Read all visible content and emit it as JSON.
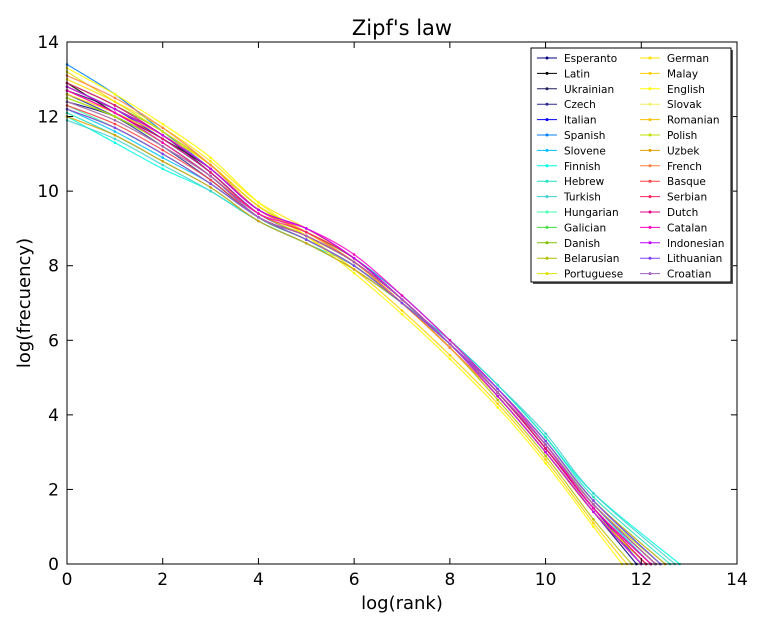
{
  "chart_data": {
    "type": "line",
    "title": "Zipf's law",
    "xlabel": "log(rank)",
    "ylabel": "log(frecuency)",
    "xlim": [
      0,
      14
    ],
    "ylim": [
      0,
      14
    ],
    "xticks": [
      0,
      2,
      4,
      6,
      8,
      10,
      12,
      14
    ],
    "yticks": [
      0,
      2,
      4,
      6,
      8,
      10,
      12,
      14
    ],
    "grid": false,
    "legend_position": "top-right",
    "legend_columns": 2,
    "series": [
      {
        "name": "Esperanto",
        "color": "#00007f",
        "x": [
          0,
          1,
          2,
          3,
          4,
          5,
          6,
          7,
          8,
          9,
          10,
          11,
          11.9
        ],
        "y": [
          12.4,
          12.0,
          11.3,
          10.4,
          9.3,
          8.7,
          8.0,
          7.0,
          5.8,
          4.5,
          3.0,
          1.4,
          0
        ]
      },
      {
        "name": "Latin",
        "color": "#000000",
        "x": [
          0,
          1,
          2,
          3,
          4,
          5,
          6,
          7,
          8,
          9,
          10,
          11,
          12.2
        ],
        "y": [
          12.9,
          12.1,
          11.4,
          10.6,
          9.5,
          8.9,
          8.2,
          7.1,
          5.9,
          4.6,
          3.1,
          1.5,
          0
        ]
      },
      {
        "name": "Ukrainian",
        "color": "#1f1f5f",
        "x": [
          0,
          1,
          2,
          3,
          4,
          5,
          6,
          7,
          8,
          9,
          10,
          11,
          12.3
        ],
        "y": [
          12.7,
          12.2,
          11.5,
          10.5,
          9.4,
          8.8,
          8.1,
          7.1,
          5.9,
          4.6,
          3.2,
          1.6,
          0
        ]
      },
      {
        "name": "Czech",
        "color": "#2a2a8f",
        "x": [
          0,
          1,
          2,
          3,
          4,
          5,
          6,
          7,
          8,
          9,
          10,
          11,
          12.1
        ],
        "y": [
          12.6,
          12.0,
          11.2,
          10.3,
          9.3,
          8.8,
          8.1,
          7.0,
          5.8,
          4.5,
          3.0,
          1.4,
          0
        ]
      },
      {
        "name": "Italian",
        "color": "#0000ff",
        "x": [
          0,
          1,
          2,
          3,
          4,
          5,
          6,
          7,
          8,
          9,
          10,
          11,
          12.0
        ],
        "y": [
          12.8,
          12.2,
          11.4,
          10.5,
          9.4,
          8.8,
          8.1,
          7.1,
          5.9,
          4.6,
          3.1,
          1.5,
          0
        ]
      },
      {
        "name": "Spanish",
        "color": "#0080ff",
        "x": [
          0,
          1,
          2,
          3,
          4,
          5,
          6,
          7,
          8,
          9,
          10,
          11,
          12.4
        ],
        "y": [
          13.4,
          12.6,
          11.6,
          10.6,
          9.5,
          8.9,
          8.2,
          7.2,
          6.0,
          4.7,
          3.3,
          1.7,
          0
        ]
      },
      {
        "name": "Slovene",
        "color": "#00c0ff",
        "x": [
          0,
          1,
          2,
          3,
          4,
          5,
          6,
          7,
          8,
          9,
          10,
          11,
          12.2
        ],
        "y": [
          12.2,
          11.6,
          10.9,
          10.2,
          9.3,
          8.7,
          8.0,
          7.0,
          5.9,
          4.6,
          3.2,
          1.6,
          0
        ]
      },
      {
        "name": "Finnish",
        "color": "#00ffe0",
        "x": [
          0,
          1,
          2,
          3,
          4,
          5,
          6,
          7,
          8,
          9,
          10,
          11,
          12.8
        ],
        "y": [
          12.0,
          11.3,
          10.6,
          10.0,
          9.2,
          8.6,
          7.9,
          7.0,
          6.0,
          4.8,
          3.4,
          1.9,
          0
        ]
      },
      {
        "name": "Hebrew",
        "color": "#20e0c0",
        "x": [
          0,
          1,
          2,
          3,
          4,
          5,
          6,
          7,
          8,
          9,
          10,
          11,
          12.6
        ],
        "y": [
          12.1,
          11.5,
          10.8,
          10.1,
          9.2,
          8.6,
          8.0,
          7.0,
          6.0,
          4.8,
          3.4,
          1.8,
          0
        ]
      },
      {
        "name": "Turkish",
        "color": "#40d0d0",
        "x": [
          0,
          1,
          2,
          3,
          4,
          5,
          6,
          7,
          8,
          9,
          10,
          11,
          12.7
        ],
        "y": [
          11.9,
          11.4,
          10.7,
          10.0,
          9.2,
          8.6,
          7.9,
          7.0,
          6.0,
          4.8,
          3.5,
          1.9,
          0
        ]
      },
      {
        "name": "Hungarian",
        "color": "#40ffb0",
        "x": [
          0,
          1,
          2,
          3,
          4,
          5,
          6,
          7,
          8,
          9,
          10,
          11,
          12.5
        ],
        "y": [
          12.3,
          11.7,
          11.0,
          10.2,
          9.3,
          8.7,
          8.0,
          7.0,
          5.9,
          4.7,
          3.3,
          1.7,
          0
        ]
      },
      {
        "name": "Galician",
        "color": "#40e040",
        "x": [
          0,
          1,
          2,
          3,
          4,
          5,
          6,
          7,
          8,
          9,
          10,
          11,
          12.0
        ],
        "y": [
          12.5,
          12.0,
          11.3,
          10.4,
          9.3,
          8.7,
          8.0,
          7.0,
          5.8,
          4.5,
          3.0,
          1.4,
          0
        ]
      },
      {
        "name": "Danish",
        "color": "#80c000",
        "x": [
          0,
          1,
          2,
          3,
          4,
          5,
          6,
          7,
          8,
          9,
          10,
          11,
          12.2
        ],
        "y": [
          12.9,
          12.3,
          11.6,
          10.7,
          9.6,
          8.9,
          8.2,
          7.1,
          5.9,
          4.6,
          3.1,
          1.5,
          0
        ]
      },
      {
        "name": "Belarusian",
        "color": "#b0c000",
        "x": [
          0,
          1,
          2,
          3,
          4,
          5,
          6,
          7,
          8,
          9,
          10,
          11,
          11.8
        ],
        "y": [
          12.2,
          11.7,
          11.0,
          10.2,
          9.3,
          8.7,
          8.0,
          7.0,
          5.8,
          4.4,
          2.9,
          1.2,
          0
        ]
      },
      {
        "name": "Portuguese",
        "color": "#e0e000",
        "x": [
          0,
          1,
          2,
          3,
          4,
          5,
          6,
          7,
          8,
          9,
          10,
          11,
          12.1
        ],
        "y": [
          13.2,
          12.4,
          11.6,
          10.7,
          9.6,
          8.9,
          8.1,
          7.0,
          5.8,
          4.5,
          3.0,
          1.4,
          0
        ]
      },
      {
        "name": "German",
        "color": "#ffe000",
        "x": [
          0,
          1,
          2,
          3,
          4,
          5,
          6,
          7,
          8,
          9,
          10,
          11,
          12.3
        ],
        "y": [
          13.0,
          12.4,
          11.7,
          10.8,
          9.7,
          9.0,
          8.2,
          7.1,
          5.9,
          4.6,
          3.2,
          1.6,
          0
        ]
      },
      {
        "name": "Malay",
        "color": "#ffd000",
        "x": [
          0,
          1,
          2,
          3,
          4,
          5,
          6,
          7,
          8,
          9,
          10,
          11,
          11.7
        ],
        "y": [
          12.6,
          12.1,
          11.5,
          10.7,
          9.6,
          8.8,
          7.9,
          6.8,
          5.6,
          4.3,
          2.8,
          1.1,
          0
        ]
      },
      {
        "name": "English",
        "color": "#ffff00",
        "x": [
          0,
          1,
          2,
          3,
          4,
          5,
          6,
          7,
          8,
          9,
          10,
          11,
          11.6
        ],
        "y": [
          13.3,
          12.6,
          11.8,
          10.9,
          9.7,
          8.8,
          7.8,
          6.7,
          5.5,
          4.2,
          2.7,
          1.0,
          0
        ]
      },
      {
        "name": "Slovak",
        "color": "#f0f060",
        "x": [
          0,
          1,
          2,
          3,
          4,
          5,
          6,
          7,
          8,
          9,
          10,
          11,
          12.0
        ],
        "y": [
          12.4,
          11.9,
          11.2,
          10.4,
          9.4,
          8.8,
          8.1,
          7.0,
          5.8,
          4.5,
          3.0,
          1.4,
          0
        ]
      },
      {
        "name": "Romanian",
        "color": "#ffc000",
        "x": [
          0,
          1,
          2,
          3,
          4,
          5,
          6,
          7,
          8,
          9,
          10,
          11,
          12.1
        ],
        "y": [
          12.8,
          12.2,
          11.5,
          10.6,
          9.5,
          8.9,
          8.1,
          7.0,
          5.8,
          4.5,
          3.0,
          1.4,
          0
        ]
      },
      {
        "name": "Polish",
        "color": "#c0e000",
        "x": [
          0,
          1,
          2,
          3,
          4,
          5,
          6,
          7,
          8,
          9,
          10,
          11,
          12.4
        ],
        "y": [
          12.5,
          12.0,
          11.3,
          10.4,
          9.4,
          8.8,
          8.1,
          7.1,
          5.9,
          4.6,
          3.2,
          1.6,
          0
        ]
      },
      {
        "name": "Uzbek",
        "color": "#e0a000",
        "x": [
          0,
          1,
          2,
          3,
          4,
          5,
          6,
          7,
          8,
          9,
          10,
          11,
          12.5
        ],
        "y": [
          12.0,
          11.5,
          10.8,
          10.1,
          9.2,
          8.6,
          7.9,
          7.0,
          5.9,
          4.7,
          3.3,
          1.7,
          0
        ]
      },
      {
        "name": "French",
        "color": "#ff8040",
        "x": [
          0,
          1,
          2,
          3,
          4,
          5,
          6,
          7,
          8,
          9,
          10,
          11,
          12.0
        ],
        "y": [
          13.1,
          12.5,
          11.7,
          10.7,
          9.5,
          8.9,
          8.1,
          7.0,
          5.8,
          4.5,
          3.0,
          1.4,
          0
        ]
      },
      {
        "name": "Basque",
        "color": "#ff4040",
        "x": [
          0,
          1,
          2,
          3,
          4,
          5,
          6,
          7,
          8,
          9,
          10,
          11,
          12.3
        ],
        "y": [
          12.3,
          11.8,
          11.1,
          10.3,
          9.3,
          8.8,
          8.1,
          7.1,
          5.9,
          4.6,
          3.2,
          1.6,
          0
        ]
      },
      {
        "name": "Serbian",
        "color": "#ff2060",
        "x": [
          0,
          1,
          2,
          3,
          4,
          5,
          6,
          7,
          8,
          9,
          10,
          11,
          12.2
        ],
        "y": [
          12.7,
          12.1,
          11.4,
          10.5,
          9.4,
          8.9,
          8.2,
          7.1,
          5.9,
          4.6,
          3.1,
          1.5,
          0
        ]
      },
      {
        "name": "Dutch",
        "color": "#e00080",
        "x": [
          0,
          1,
          2,
          3,
          4,
          5,
          6,
          7,
          8,
          9,
          10,
          11,
          12.1
        ],
        "y": [
          12.9,
          12.3,
          11.5,
          10.6,
          9.5,
          9.0,
          8.2,
          7.1,
          5.9,
          4.6,
          3.1,
          1.5,
          0
        ]
      },
      {
        "name": "Catalan",
        "color": "#ff00c0",
        "x": [
          0,
          1,
          2,
          3,
          4,
          5,
          6,
          7,
          8,
          9,
          10,
          11,
          12.2
        ],
        "y": [
          12.7,
          12.1,
          11.3,
          10.4,
          9.4,
          9.0,
          8.3,
          7.2,
          6.0,
          4.7,
          3.2,
          1.5,
          0
        ]
      },
      {
        "name": "Indonesian",
        "color": "#c000ff",
        "x": [
          0,
          1,
          2,
          3,
          4,
          5,
          6,
          7,
          8,
          9,
          10,
          11,
          12.0
        ],
        "y": [
          12.8,
          12.2,
          11.5,
          10.6,
          9.5,
          9.0,
          8.2,
          7.1,
          5.9,
          4.5,
          3.0,
          1.4,
          0
        ]
      },
      {
        "name": "Lithuanian",
        "color": "#8040ff",
        "x": [
          0,
          1,
          2,
          3,
          4,
          5,
          6,
          7,
          8,
          9,
          10,
          11,
          12.4
        ],
        "y": [
          12.2,
          11.7,
          11.0,
          10.2,
          9.3,
          8.7,
          8.0,
          7.0,
          5.9,
          4.7,
          3.3,
          1.7,
          0
        ]
      },
      {
        "name": "Croatian",
        "color": "#a060c0",
        "x": [
          0,
          1,
          2,
          3,
          4,
          5,
          6,
          7,
          8,
          9,
          10,
          11,
          12.3
        ],
        "y": [
          12.4,
          11.9,
          11.2,
          10.4,
          9.3,
          8.8,
          8.1,
          7.1,
          5.9,
          4.6,
          3.2,
          1.6,
          0
        ]
      }
    ]
  }
}
